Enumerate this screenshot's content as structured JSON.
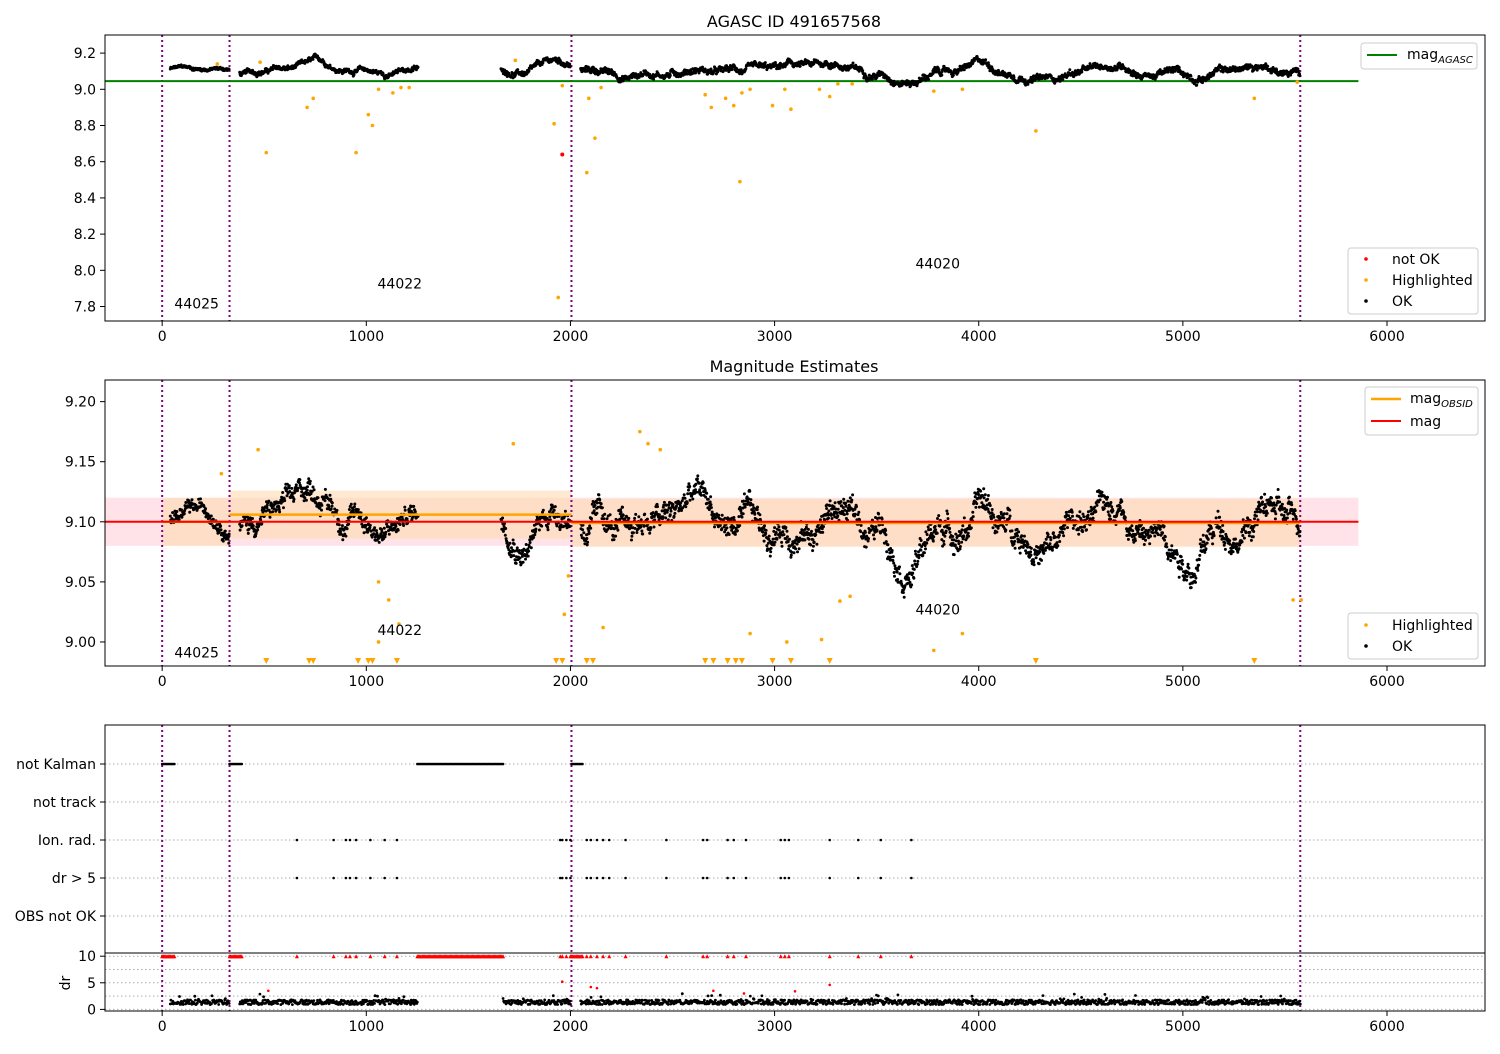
{
  "chart_data": [
    {
      "type": "scatter",
      "title": "AGASC ID 491657568",
      "xlim": [
        -280,
        6480
      ],
      "ylim": [
        7.72,
        9.3
      ],
      "xticks": [
        0,
        1000,
        2000,
        3000,
        4000,
        5000,
        6000
      ],
      "yticks": [
        7.8,
        8.0,
        8.2,
        8.4,
        8.6,
        8.8,
        9.0,
        9.2
      ],
      "ytick_labels": [
        "7.8",
        "8.0",
        "8.2",
        "8.4",
        "8.6",
        "8.8",
        "9.0",
        "9.2"
      ],
      "obsid_boundaries": [
        0,
        330,
        2005,
        5575
      ],
      "obsid_labels": [
        {
          "text": "44025",
          "x": 60,
          "y": 7.79
        },
        {
          "text": "44022",
          "x": 1055,
          "y": 7.9
        },
        {
          "text": "44020",
          "x": 3690,
          "y": 8.01
        }
      ],
      "reference_lines": [
        {
          "name": "mag",
          "subscript": "AGASC",
          "y": 9.045,
          "x": [
            -280,
            5860
          ],
          "color": "#008000"
        }
      ],
      "legend": {
        "upper_right": [
          {
            "label": "mag",
            "subscript": "AGASC",
            "color": "#008000",
            "kind": "line"
          }
        ],
        "lower_right": [
          {
            "label": "not OK",
            "color": "#ff0000",
            "kind": "point"
          },
          {
            "label": "Highlighted",
            "color": "#ffa500",
            "kind": "point"
          },
          {
            "label": "OK",
            "color": "#000000",
            "kind": "point"
          }
        ]
      },
      "ok_segments": [
        {
          "x0": 40,
          "x1": 330,
          "base": 9.105,
          "amp": 0.02
        },
        {
          "x0": 380,
          "x1": 1255,
          "base": 9.11,
          "amp": 0.03
        },
        {
          "x0": 1660,
          "x1": 2000,
          "base": 9.115,
          "amp": 0.035
        },
        {
          "x0": 2050,
          "x1": 5575,
          "base": 9.1,
          "amp": 0.04
        }
      ],
      "highlighted": [
        [
          270,
          9.14
        ],
        [
          480,
          9.15
        ],
        [
          510,
          8.65
        ],
        [
          710,
          8.9
        ],
        [
          740,
          8.95
        ],
        [
          950,
          8.65
        ],
        [
          1010,
          8.86
        ],
        [
          1030,
          8.8
        ],
        [
          1060,
          9.0
        ],
        [
          1130,
          8.98
        ],
        [
          1170,
          9.01
        ],
        [
          1210,
          9.01
        ],
        [
          1730,
          9.16
        ],
        [
          1920,
          8.81
        ],
        [
          1940,
          7.85
        ],
        [
          1960,
          9.02
        ],
        [
          2080,
          8.54
        ],
        [
          2090,
          8.95
        ],
        [
          2120,
          8.73
        ],
        [
          2150,
          9.01
        ],
        [
          2660,
          8.97
        ],
        [
          2690,
          8.9
        ],
        [
          2760,
          8.95
        ],
        [
          2800,
          8.91
        ],
        [
          2830,
          8.49
        ],
        [
          2840,
          8.98
        ],
        [
          2880,
          9.0
        ],
        [
          2990,
          8.91
        ],
        [
          3050,
          9.0
        ],
        [
          3080,
          8.89
        ],
        [
          3220,
          9.0
        ],
        [
          3270,
          8.96
        ],
        [
          3310,
          9.03
        ],
        [
          3380,
          9.03
        ],
        [
          3780,
          8.99
        ],
        [
          3920,
          9.0
        ],
        [
          4280,
          8.77
        ],
        [
          5350,
          8.95
        ],
        [
          5560,
          9.04
        ]
      ],
      "not_ok": [
        [
          1960,
          8.64
        ]
      ]
    },
    {
      "type": "scatter",
      "title": "Magnitude Estimates",
      "xlim": [
        -280,
        6480
      ],
      "ylim": [
        8.98,
        9.218
      ],
      "xticks": [
        0,
        1000,
        2000,
        3000,
        4000,
        5000,
        6000
      ],
      "yticks": [
        9.0,
        9.05,
        9.1,
        9.15,
        9.2
      ],
      "ytick_labels": [
        "9.00",
        "9.05",
        "9.10",
        "9.15",
        "9.20"
      ],
      "obsid_boundaries": [
        0,
        330,
        2005,
        5575
      ],
      "obsid_labels": [
        {
          "text": "44025",
          "x": 60,
          "y": 8.987
        },
        {
          "text": "44022",
          "x": 1055,
          "y": 9.006
        },
        {
          "text": "44020",
          "x": 3690,
          "y": 9.023
        }
      ],
      "mag": {
        "y": 9.1,
        "band": [
          9.08,
          9.12
        ],
        "x": [
          -280,
          5860
        ]
      },
      "mag_obsid": [
        {
          "x": [
            0,
            330
          ],
          "y": 9.1,
          "band": [
            9.08,
            9.12
          ]
        },
        {
          "x": [
            330,
            2005
          ],
          "y": 9.106,
          "band": [
            9.086,
            9.126
          ]
        },
        {
          "x": [
            2005,
            5575
          ],
          "y": 9.099,
          "band": [
            9.079,
            9.119
          ]
        }
      ],
      "legend": {
        "upper_right": [
          {
            "label": "mag",
            "subscript": "OBSID",
            "color": "#ffa500",
            "kind": "line"
          },
          {
            "label": "mag",
            "subscript": "",
            "color": "#ff0000",
            "kind": "line"
          }
        ],
        "lower_right": [
          {
            "label": "Highlighted",
            "color": "#ffa500",
            "kind": "point"
          },
          {
            "label": "OK",
            "color": "#000000",
            "kind": "point"
          }
        ]
      },
      "ok_segments": [
        {
          "x0": 40,
          "x1": 330,
          "base": 9.1,
          "amp": 0.012
        },
        {
          "x0": 380,
          "x1": 1255,
          "base": 9.108,
          "amp": 0.018
        },
        {
          "x0": 1660,
          "x1": 2000,
          "base": 9.105,
          "amp": 0.02
        },
        {
          "x0": 2050,
          "x1": 5575,
          "base": 9.098,
          "amp": 0.022
        }
      ],
      "highlighted": [
        [
          290,
          9.14
        ],
        [
          470,
          9.16
        ],
        [
          1060,
          9.05
        ],
        [
          1110,
          9.035
        ],
        [
          1160,
          9.015
        ],
        [
          1060,
          9.0
        ],
        [
          1720,
          9.165
        ],
        [
          1990,
          9.055
        ],
        [
          1970,
          9.023
        ],
        [
          2160,
          9.012
        ],
        [
          2340,
          9.175
        ],
        [
          2380,
          9.165
        ],
        [
          2440,
          9.16
        ],
        [
          2880,
          9.007
        ],
        [
          3060,
          9.0
        ],
        [
          3230,
          9.002
        ],
        [
          3320,
          9.034
        ],
        [
          3370,
          9.038
        ],
        [
          3780,
          8.993
        ],
        [
          3920,
          9.007
        ],
        [
          5540,
          9.035
        ],
        [
          5580,
          9.035
        ]
      ],
      "below_range": [
        510,
        720,
        740,
        960,
        1010,
        1030,
        1150,
        1930,
        1960,
        2080,
        2110,
        2660,
        2700,
        2770,
        2810,
        2840,
        2990,
        3080,
        3270,
        4280,
        5350
      ]
    },
    {
      "type": "scatter",
      "title": "",
      "xlim": [
        -280,
        6480
      ],
      "xticks": [
        0,
        1000,
        2000,
        3000,
        4000,
        5000,
        6000
      ],
      "flag_rows": [
        "not Kalman",
        "not track",
        "Ion. rad.",
        "dr > 5",
        "OBS not OK"
      ],
      "flags": {
        "not Kalman": [
          [
            0,
            60
          ],
          [
            330,
            390
          ],
          [
            1250,
            1670
          ],
          [
            2005,
            2060
          ]
        ],
        "not track": [],
        "Ion. rad.": [
          660,
          840,
          900,
          920,
          950,
          1020,
          1090,
          1150,
          1950,
          1960,
          1980,
          2000,
          2080,
          2100,
          2130,
          2160,
          2190,
          2270,
          2470,
          2650,
          2670,
          2770,
          2800,
          2860,
          3030,
          3050,
          3070,
          3270,
          3410,
          3520,
          3670
        ],
        "dr > 5": [
          660,
          840,
          900,
          920,
          950,
          1020,
          1090,
          1150,
          1950,
          1960,
          1980,
          2000,
          2080,
          2100,
          2130,
          2160,
          2190,
          2270,
          2470,
          2650,
          2670,
          2770,
          2800,
          2860,
          3030,
          3050,
          3070,
          3270,
          3410,
          3520,
          3670
        ],
        "OBS not OK": []
      },
      "ylabel": "dr",
      "dr_yticks": [
        0,
        5,
        10
      ],
      "dr_ylim": [
        -0.3,
        10.6
      ],
      "dr_ok_segments": [
        [
          40,
          330
        ],
        [
          380,
          1250
        ],
        [
          1670,
          2000
        ],
        [
          2050,
          5575
        ]
      ],
      "dr_red_points": [
        [
          520,
          3.5
        ],
        [
          1960,
          5.2
        ],
        [
          2100,
          4.2
        ],
        [
          2130,
          4.0
        ],
        [
          2700,
          3.5
        ],
        [
          2850,
          3.0
        ],
        [
          3100,
          3.4
        ],
        [
          3270,
          4.6
        ]
      ]
    }
  ],
  "colors": {
    "ok": "#000000",
    "highlighted": "#ffa500",
    "not_ok": "#ff0000",
    "boundary": "#800080",
    "agasc": "#008000",
    "mag": "#ff0000",
    "mag_band": "#ffc0cb"
  }
}
